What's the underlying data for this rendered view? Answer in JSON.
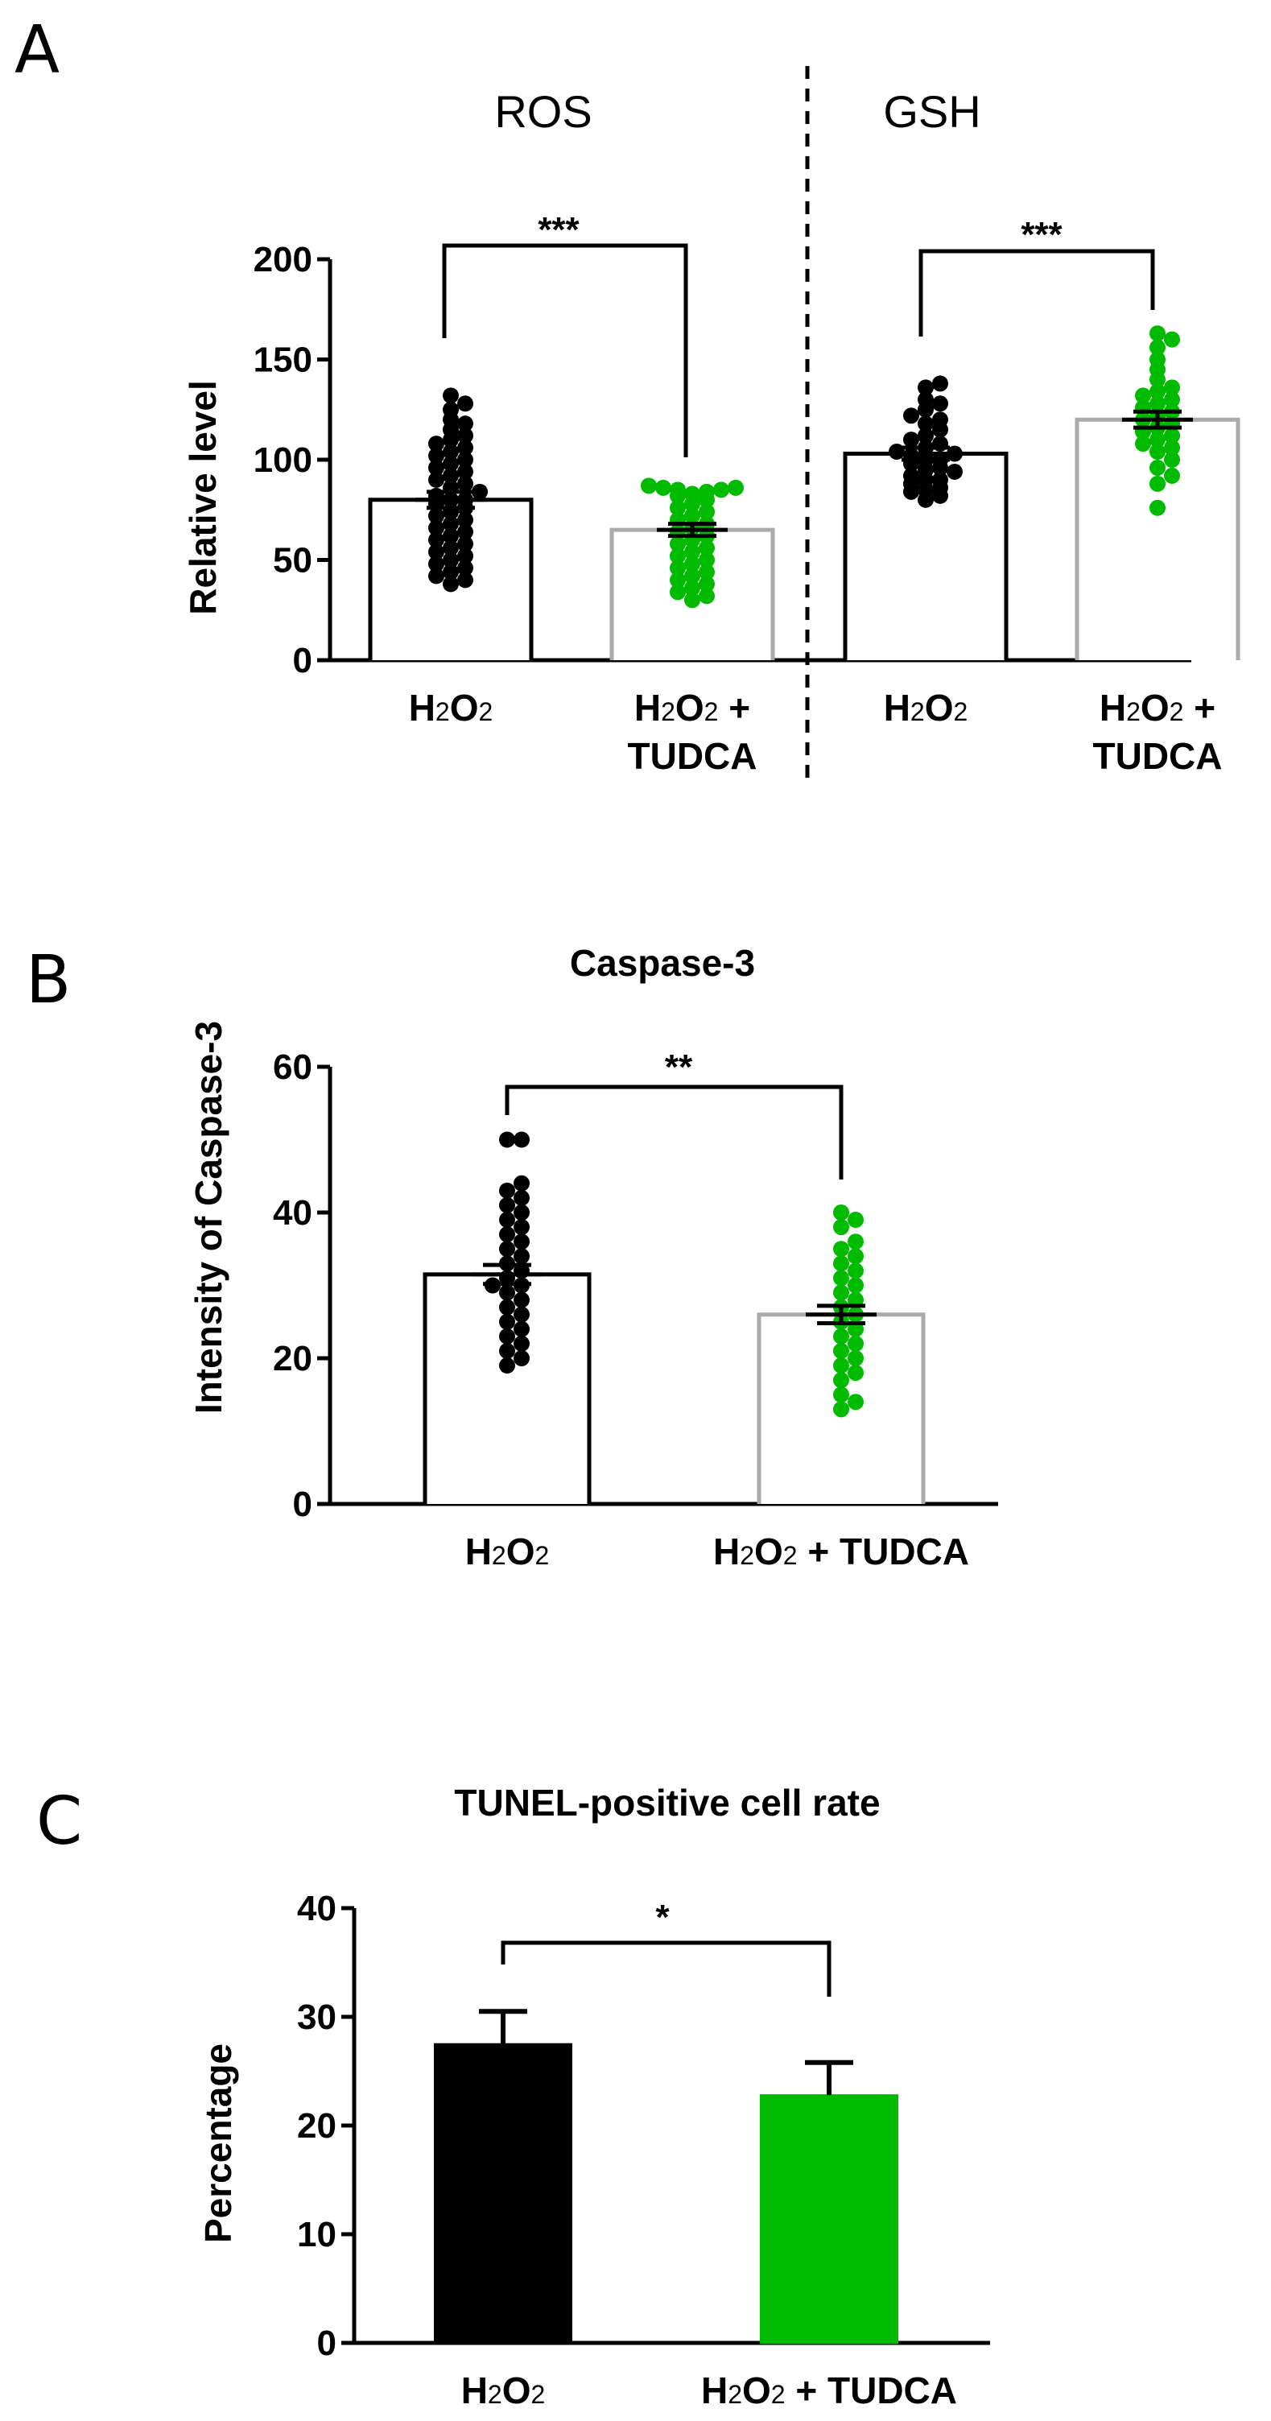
{
  "chart_data": [
    {
      "id": "A",
      "panel_letter": "A",
      "type": "bar",
      "groups": [
        {
          "title": "ROS",
          "significance": "***",
          "categories": [
            "H2O2",
            "H2O2 + TUDCA"
          ]
        },
        {
          "title": "GSH",
          "significance": "***",
          "categories": [
            "H2O2",
            "H2O2 + TUDCA"
          ]
        }
      ],
      "ylabel": "Relative level",
      "ylim": [
        0,
        200
      ],
      "yticks": [
        0,
        50,
        100,
        150,
        200
      ],
      "bars": [
        {
          "category": "H2O2",
          "group": "ROS",
          "mean": 80,
          "sem": 4,
          "fill": "#ffffff",
          "edge": "#000000",
          "point_color": "#000000",
          "points": [
            38,
            40,
            42,
            44,
            46,
            48,
            50,
            52,
            54,
            56,
            58,
            60,
            62,
            64,
            66,
            68,
            70,
            72,
            74,
            76,
            78,
            80,
            80,
            82,
            84,
            86,
            88,
            90,
            92,
            94,
            96,
            98,
            100,
            102,
            104,
            106,
            108,
            110,
            112,
            115,
            118,
            120,
            125,
            128,
            132
          ]
        },
        {
          "category": "H2O2 + TUDCA",
          "group": "ROS",
          "mean": 65,
          "sem": 3,
          "fill": "#ffffff",
          "edge": "#aaaaaa",
          "point_color": "#00bb00",
          "points": [
            30,
            32,
            34,
            36,
            38,
            40,
            42,
            44,
            46,
            48,
            50,
            52,
            54,
            56,
            58,
            60,
            62,
            64,
            66,
            68,
            70,
            72,
            74,
            76,
            78,
            80,
            82,
            83,
            84,
            85,
            85,
            86,
            86,
            87
          ]
        },
        {
          "category": "H2O2",
          "group": "GSH",
          "mean": 103,
          "sem": 3,
          "fill": "#ffffff",
          "edge": "#000000",
          "point_color": "#000000",
          "points": [
            80,
            82,
            84,
            85,
            86,
            88,
            90,
            90,
            92,
            94,
            95,
            96,
            98,
            100,
            100,
            102,
            103,
            104,
            106,
            108,
            110,
            112,
            115,
            118,
            120,
            122,
            125,
            128,
            130,
            136,
            138
          ]
        },
        {
          "category": "H2O2 + TUDCA",
          "group": "GSH",
          "mean": 120,
          "sem": 4,
          "fill": "#ffffff",
          "edge": "#aaaaaa",
          "point_color": "#00bb00",
          "points": [
            76,
            88,
            92,
            96,
            100,
            104,
            106,
            108,
            110,
            112,
            114,
            116,
            118,
            120,
            122,
            124,
            126,
            128,
            130,
            132,
            134,
            136,
            140,
            145,
            150,
            156,
            160,
            163
          ]
        }
      ]
    },
    {
      "id": "B",
      "panel_letter": "B",
      "type": "bar",
      "title": "Caspase-3",
      "ylabel": "Intensity of Caspase-3",
      "ylim": [
        0,
        60
      ],
      "yticks": [
        0,
        20,
        40,
        60
      ],
      "significance": "**",
      "categories": [
        "H2O2",
        "H2O2 + TUDCA"
      ],
      "bars": [
        {
          "category": "H2O2",
          "mean": 31.5,
          "sem": 1.3,
          "fill": "#ffffff",
          "edge": "#000000",
          "point_color": "#000000",
          "points": [
            19,
            20,
            21,
            22,
            23,
            24,
            25,
            26,
            27,
            28,
            29,
            30,
            30,
            31,
            32,
            33,
            34,
            35,
            36,
            37,
            38,
            39,
            40,
            41,
            42,
            43,
            44,
            50,
            50
          ]
        },
        {
          "category": "H2O2 + TUDCA",
          "mean": 26,
          "sem": 1.2,
          "fill": "#ffffff",
          "edge": "#aaaaaa",
          "point_color": "#00bb00",
          "points": [
            13,
            14,
            15,
            17,
            18,
            19,
            20,
            21,
            22,
            23,
            24,
            25,
            26,
            27,
            28,
            29,
            30,
            31,
            32,
            33,
            34,
            35,
            36,
            38,
            39,
            40
          ]
        }
      ]
    },
    {
      "id": "C",
      "panel_letter": "C",
      "type": "bar",
      "title": "TUNEL-positive cell rate",
      "ylabel": "Percentage",
      "ylim": [
        0,
        40
      ],
      "yticks": [
        0,
        10,
        20,
        30,
        40
      ],
      "significance": "*",
      "categories": [
        "H2O2",
        "H2O2 + TUDCA"
      ],
      "bars": [
        {
          "category": "H2O2",
          "mean": 27.5,
          "error": 3,
          "fill": "#000000",
          "edge": "#000000"
        },
        {
          "category": "H2O2 + TUDCA",
          "mean": 22.8,
          "error": 3,
          "fill": "#00bb00",
          "edge": "#00bb00"
        }
      ]
    }
  ]
}
